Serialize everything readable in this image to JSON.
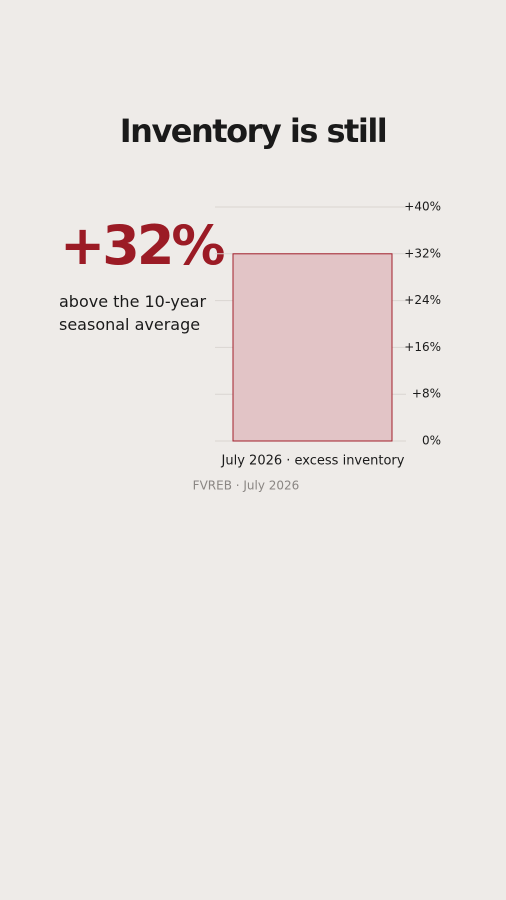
{
  "chart_data": {
    "type": "bar",
    "title": "Inventory is still",
    "annotation": "above the 10-year seasonal average",
    "categories": [
      "July 2026 · excess inventory"
    ],
    "values": [
      32
    ],
    "value_labels": [
      "+32%"
    ],
    "color": "#e2c4c6",
    "edge_color": "#a31f2b",
    "label_color": "#9b1b25",
    "ylim": [
      0,
      40
    ],
    "yticks": [
      {
        "value": 0,
        "label": "0%"
      },
      {
        "value": 8,
        "label": "+8%"
      },
      {
        "value": 16,
        "label": "+16%"
      },
      {
        "value": 24,
        "label": "+24%"
      },
      {
        "value": 32,
        "label": "+32%"
      },
      {
        "value": 40,
        "label": "+40%"
      }
    ],
    "grid": true,
    "source": "FVREB · July 2026"
  }
}
